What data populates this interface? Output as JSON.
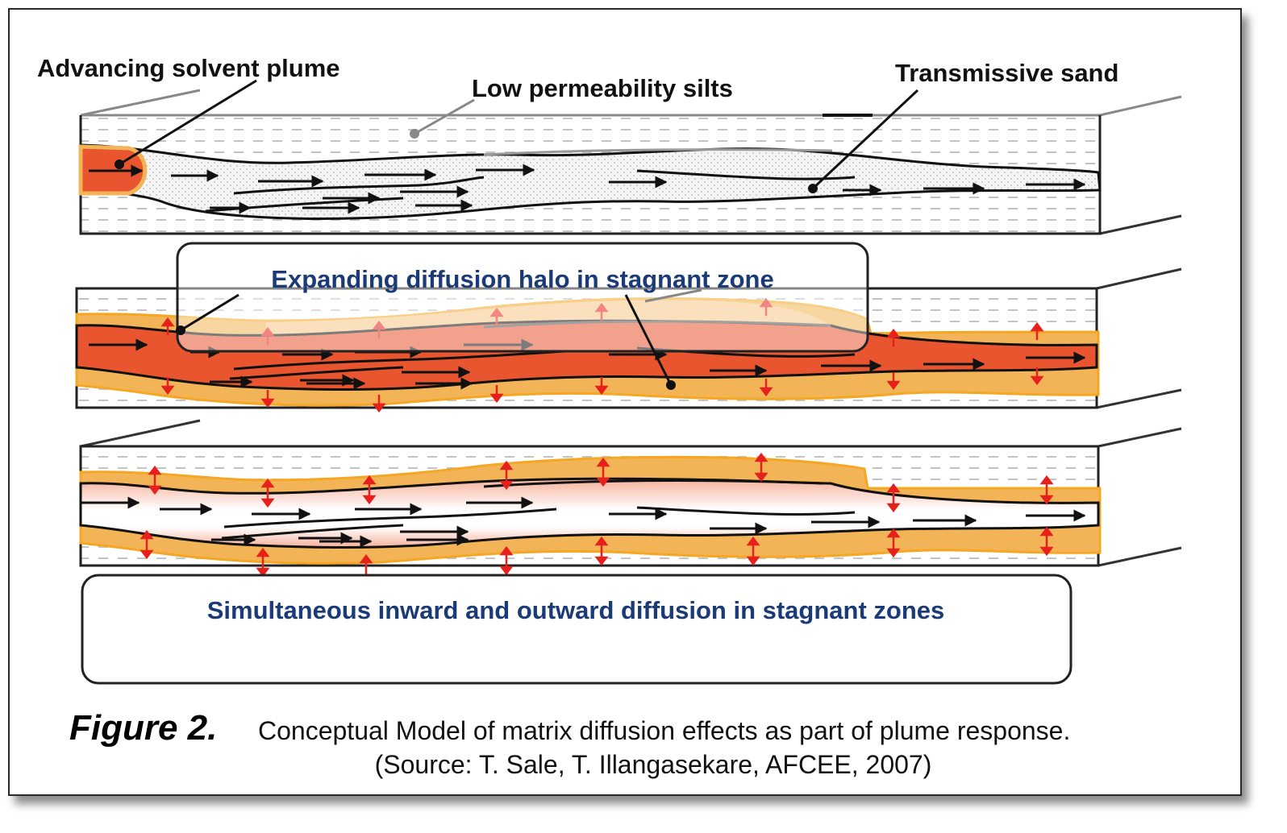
{
  "labels": {
    "advancing_plume": "Advancing solvent plume",
    "low_perm_silts": "Low permeability silts",
    "transmissive_sand": "Transmissive sand",
    "expanding_halo": "Expanding diffusion halo in stagnant zone",
    "simultaneous_diffusion": "Simultaneous inward and outward diffusion in stagnant zones"
  },
  "caption": {
    "figure_label": "Figure 2.",
    "text": "Conceptual Model of matrix diffusion effects as part of plume response.",
    "source": "(Source:  T. Sale, T. Illangasekare, AFCEE, 2007)"
  },
  "colors": {
    "plume_red": "#e8552e",
    "halo_orange": "#f3b457",
    "halo_light": "#f8d9a4",
    "sand_fill": "#f3f3f3",
    "diffusion_arrow": "#e8201c",
    "label_blue": "#1b3a78"
  }
}
